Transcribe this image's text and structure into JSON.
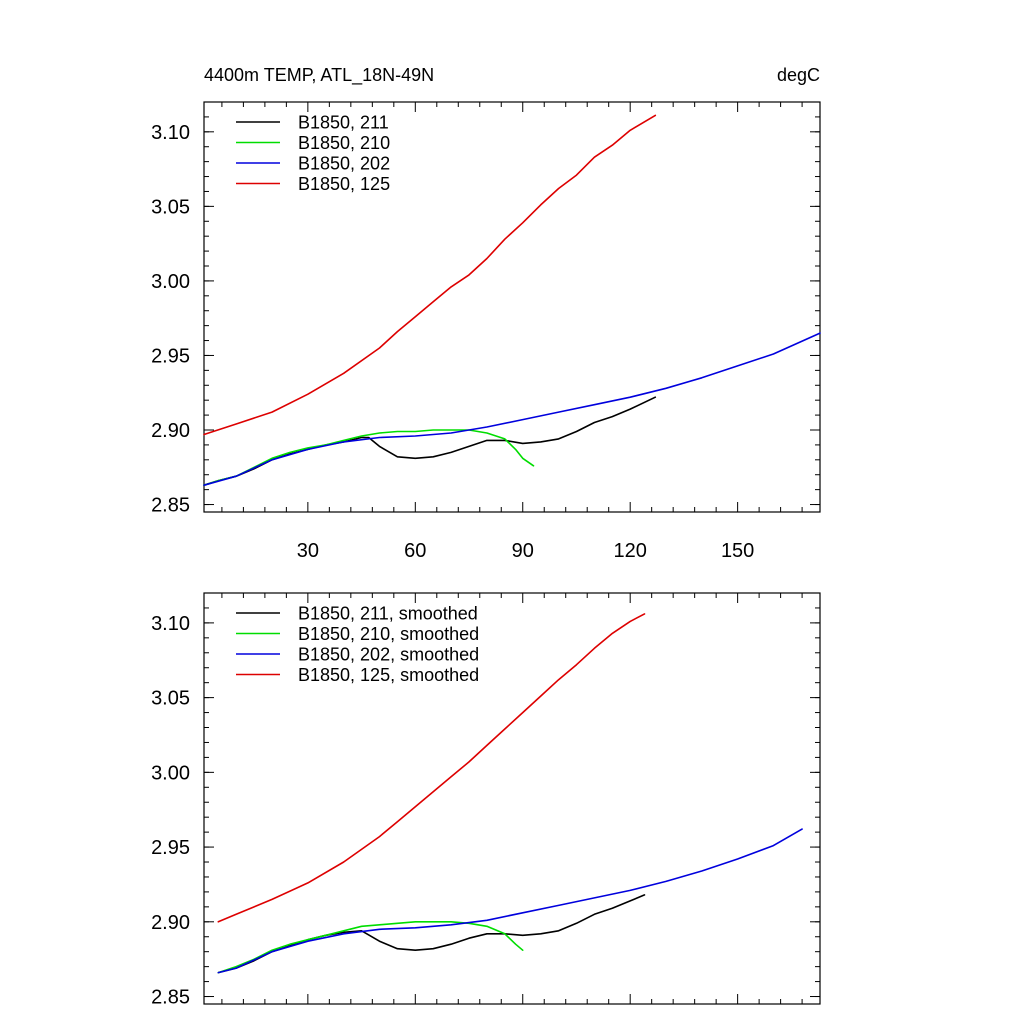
{
  "figure": {
    "title_left": "4400m TEMP, ATL_18N-49N",
    "title_right": "degC"
  },
  "chart_data": [
    {
      "type": "line",
      "title": "4400m TEMP, ATL_18N-49N",
      "units": "degC",
      "xlim": [
        1,
        173
      ],
      "ylim": [
        2.845,
        3.12
      ],
      "xticks": [
        30,
        60,
        90,
        120,
        150
      ],
      "yticks": [
        2.85,
        2.9,
        2.95,
        3.0,
        3.05,
        3.1
      ],
      "ytick_labels": [
        "2.85",
        "2.90",
        "2.95",
        "3.00",
        "3.05",
        "3.10"
      ],
      "xtick_labels": [
        "30",
        "60",
        "90",
        "120",
        "150"
      ],
      "legend_position": "top-left",
      "series": [
        {
          "name": "B1850, 211",
          "color": "#000000",
          "x": [
            1,
            5,
            10,
            15,
            20,
            25,
            30,
            35,
            40,
            45,
            47,
            50,
            55,
            60,
            65,
            70,
            75,
            80,
            85,
            90,
            95,
            100,
            105,
            110,
            115,
            120,
            127
          ],
          "y": [
            2.863,
            2.866,
            2.869,
            2.874,
            2.88,
            2.884,
            2.887,
            2.89,
            2.892,
            2.895,
            2.895,
            2.889,
            2.882,
            2.881,
            2.882,
            2.885,
            2.889,
            2.893,
            2.893,
            2.891,
            2.892,
            2.894,
            2.899,
            2.905,
            2.909,
            2.914,
            2.922
          ]
        },
        {
          "name": "B1850, 210",
          "color": "#00dd00",
          "x": [
            1,
            5,
            10,
            15,
            20,
            25,
            30,
            35,
            40,
            45,
            50,
            55,
            60,
            65,
            70,
            75,
            80,
            85,
            88,
            90,
            93
          ],
          "y": [
            2.863,
            2.866,
            2.869,
            2.875,
            2.881,
            2.885,
            2.888,
            2.89,
            2.893,
            2.896,
            2.898,
            2.899,
            2.899,
            2.9,
            2.9,
            2.9,
            2.898,
            2.894,
            2.887,
            2.881,
            2.876
          ]
        },
        {
          "name": "B1850, 202",
          "color": "#0000dd",
          "x": [
            1,
            10,
            20,
            30,
            40,
            50,
            60,
            70,
            80,
            90,
            100,
            110,
            120,
            130,
            140,
            150,
            160,
            173
          ],
          "y": [
            2.863,
            2.869,
            2.88,
            2.887,
            2.892,
            2.895,
            2.896,
            2.898,
            2.902,
            2.907,
            2.912,
            2.917,
            2.922,
            2.928,
            2.935,
            2.943,
            2.951,
            2.965
          ]
        },
        {
          "name": "B1850, 125",
          "color": "#dd0000",
          "x": [
            1,
            10,
            20,
            30,
            40,
            50,
            55,
            60,
            65,
            70,
            75,
            80,
            85,
            90,
            95,
            100,
            105,
            110,
            115,
            120,
            127
          ],
          "y": [
            2.897,
            2.904,
            2.912,
            2.924,
            2.938,
            2.955,
            2.966,
            2.976,
            2.986,
            2.996,
            3.004,
            3.015,
            3.028,
            3.039,
            3.051,
            3.062,
            3.071,
            3.083,
            3.091,
            3.101,
            3.111
          ]
        }
      ]
    },
    {
      "type": "line",
      "xlim": [
        1,
        173
      ],
      "ylim": [
        2.845,
        3.12
      ],
      "xticks": [
        30,
        60,
        90,
        120,
        150
      ],
      "yticks": [
        2.85,
        2.9,
        2.95,
        3.0,
        3.05,
        3.1
      ],
      "ytick_labels": [
        "2.85",
        "2.90",
        "2.95",
        "3.00",
        "3.05",
        "3.10"
      ],
      "legend_position": "top-left",
      "series": [
        {
          "name": "B1850, 211, smoothed",
          "color": "#000000",
          "x": [
            5,
            10,
            15,
            20,
            25,
            30,
            35,
            40,
            45,
            50,
            55,
            60,
            65,
            70,
            75,
            80,
            85,
            90,
            95,
            100,
            105,
            110,
            115,
            120,
            124
          ],
          "y": [
            2.866,
            2.869,
            2.874,
            2.88,
            2.884,
            2.888,
            2.891,
            2.893,
            2.894,
            2.887,
            2.882,
            2.881,
            2.882,
            2.885,
            2.889,
            2.892,
            2.892,
            2.891,
            2.892,
            2.894,
            2.899,
            2.905,
            2.909,
            2.914,
            2.918
          ]
        },
        {
          "name": "B1850, 210, smoothed",
          "color": "#00dd00",
          "x": [
            5,
            10,
            15,
            20,
            25,
            30,
            35,
            40,
            45,
            50,
            55,
            60,
            65,
            70,
            75,
            80,
            85,
            88,
            90
          ],
          "y": [
            2.866,
            2.87,
            2.875,
            2.881,
            2.885,
            2.888,
            2.891,
            2.894,
            2.897,
            2.898,
            2.899,
            2.9,
            2.9,
            2.9,
            2.899,
            2.897,
            2.892,
            2.885,
            2.881
          ]
        },
        {
          "name": "B1850, 202, smoothed",
          "color": "#0000dd",
          "x": [
            5,
            10,
            20,
            30,
            40,
            50,
            60,
            70,
            80,
            90,
            100,
            110,
            120,
            130,
            140,
            150,
            160,
            168
          ],
          "y": [
            2.866,
            2.869,
            2.88,
            2.887,
            2.892,
            2.895,
            2.896,
            2.898,
            2.901,
            2.906,
            2.911,
            2.916,
            2.921,
            2.927,
            2.934,
            2.942,
            2.951,
            2.962
          ]
        },
        {
          "name": "B1850, 125, smoothed",
          "color": "#dd0000",
          "x": [
            5,
            10,
            20,
            30,
            40,
            50,
            55,
            60,
            65,
            70,
            75,
            80,
            85,
            90,
            95,
            100,
            105,
            110,
            115,
            120,
            124
          ],
          "y": [
            2.9,
            2.905,
            2.915,
            2.926,
            2.94,
            2.957,
            2.967,
            2.977,
            2.987,
            2.997,
            3.007,
            3.018,
            3.029,
            3.04,
            3.051,
            3.062,
            3.072,
            3.083,
            3.093,
            3.101,
            3.106
          ]
        }
      ]
    }
  ]
}
